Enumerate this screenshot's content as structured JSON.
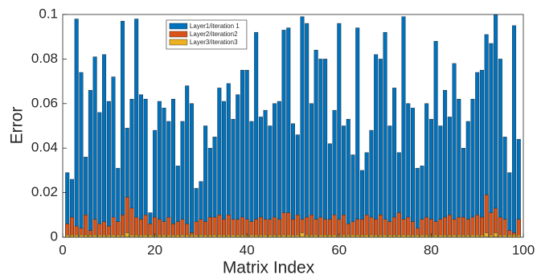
{
  "chart_data": {
    "type": "bar",
    "barmode": "overlay",
    "xlabel": "Matrix Index",
    "ylabel": "Error",
    "x": [
      1,
      2,
      3,
      4,
      5,
      6,
      7,
      8,
      9,
      10,
      11,
      12,
      13,
      14,
      15,
      16,
      17,
      18,
      19,
      20,
      21,
      22,
      23,
      24,
      25,
      26,
      27,
      28,
      29,
      30,
      31,
      32,
      33,
      34,
      35,
      36,
      37,
      38,
      39,
      40,
      41,
      42,
      43,
      44,
      45,
      46,
      47,
      48,
      49,
      50,
      51,
      52,
      53,
      54,
      55,
      56,
      57,
      58,
      59,
      60,
      61,
      62,
      63,
      64,
      65,
      66,
      67,
      68,
      69,
      70,
      71,
      72,
      73,
      74,
      75,
      76,
      77,
      78,
      79,
      80,
      81,
      82,
      83,
      84,
      85,
      86,
      87,
      88,
      89,
      90,
      91,
      92,
      93,
      94,
      95,
      96,
      97,
      98,
      99
    ],
    "series": [
      {
        "name": "Layer1/iteration 1",
        "color": "#0072bd",
        "values": [
          0.029,
          0.026,
          0.098,
          0.074,
          0.036,
          0.066,
          0.081,
          0.056,
          0.082,
          0.061,
          0.072,
          0.031,
          0.097,
          0.049,
          0.062,
          0.098,
          0.064,
          0.062,
          0.011,
          0.048,
          0.061,
          0.058,
          0.052,
          0.062,
          0.032,
          0.052,
          0.068,
          0.06,
          0.022,
          0.025,
          0.05,
          0.04,
          0.045,
          0.067,
          0.061,
          0.069,
          0.053,
          0.064,
          0.075,
          0.075,
          0.052,
          0.092,
          0.054,
          0.057,
          0.05,
          0.06,
          0.061,
          0.093,
          0.094,
          0.051,
          0.046,
          0.099,
          0.096,
          0.06,
          0.084,
          0.08,
          0.08,
          0.042,
          0.057,
          0.096,
          0.05,
          0.053,
          0.037,
          0.094,
          0.03,
          0.038,
          0.048,
          0.082,
          0.08,
          0.092,
          0.05,
          0.067,
          0.038,
          0.099,
          0.06,
          0.058,
          0.031,
          0.032,
          0.06,
          0.053,
          0.088,
          0.05,
          0.066,
          0.054,
          0.078,
          0.062,
          0.04,
          0.052,
          0.062,
          0.074,
          0.075,
          0.091,
          0.087,
          0.1,
          0.08,
          0.045,
          0.029,
          0.095,
          0.044
        ]
      },
      {
        "name": "Layer2/iteration2",
        "color": "#d95319",
        "values": [
          0.006,
          0.009,
          0.005,
          0.004,
          0.01,
          0.003,
          0.008,
          0.006,
          0.007,
          0.005,
          0.009,
          0.007,
          0.01,
          0.018,
          0.013,
          0.009,
          0.008,
          0.01,
          0.006,
          0.009,
          0.008,
          0.007,
          0.009,
          0.006,
          0.007,
          0.008,
          0.006,
          0.002,
          0.007,
          0.008,
          0.007,
          0.009,
          0.009,
          0.01,
          0.008,
          0.01,
          0.008,
          0.008,
          0.009,
          0.008,
          0.007,
          0.008,
          0.009,
          0.008,
          0.008,
          0.009,
          0.008,
          0.011,
          0.011,
          0.008,
          0.01,
          0.008,
          0.009,
          0.01,
          0.008,
          0.009,
          0.008,
          0.008,
          0.01,
          0.008,
          0.01,
          0.006,
          0.007,
          0.008,
          0.008,
          0.01,
          0.009,
          0.008,
          0.01,
          0.008,
          0.007,
          0.009,
          0.011,
          0.008,
          0.009,
          0.007,
          0.004,
          0.008,
          0.009,
          0.008,
          0.007,
          0.008,
          0.009,
          0.01,
          0.008,
          0.009,
          0.009,
          0.008,
          0.009,
          0.01,
          0.009,
          0.019,
          0.011,
          0.013,
          0.009,
          0.008,
          0.003,
          0.002,
          0.008
        ]
      },
      {
        "name": "Layer3/iteration3",
        "color": "#edb120",
        "values": [
          0.001,
          0.001,
          0.001,
          0.001,
          0.001,
          0.001,
          0.001,
          0.001,
          0.001,
          0.001,
          0.001,
          0.001,
          0.001,
          0.002,
          0.001,
          0.001,
          0.001,
          0.001,
          0.001,
          0.001,
          0.001,
          0.001,
          0.001,
          0.001,
          0.001,
          0.001,
          0.001,
          0.001,
          0.001,
          0.001,
          0.001,
          0.001,
          0.001,
          0.001,
          0.001,
          0.001,
          0.001,
          0.001,
          0.001,
          0.001,
          0.001,
          0.001,
          0.001,
          0.001,
          0.001,
          0.001,
          0.001,
          0.001,
          0.001,
          0.001,
          0.001,
          0.002,
          0.001,
          0.001,
          0.001,
          0.001,
          0.001,
          0.001,
          0.001,
          0.001,
          0.001,
          0.001,
          0.001,
          0.001,
          0.001,
          0.001,
          0.001,
          0.001,
          0.001,
          0.001,
          0.001,
          0.001,
          0.001,
          0.001,
          0.001,
          0.001,
          0.001,
          0.001,
          0.001,
          0.001,
          0.001,
          0.001,
          0.001,
          0.001,
          0.001,
          0.001,
          0.001,
          0.001,
          0.001,
          0.001,
          0.001,
          0.002,
          0.001,
          0.002,
          0.001,
          0.001,
          0.001,
          0.001,
          0.001
        ]
      }
    ],
    "xlim": [
      0,
      100
    ],
    "xticks": [
      0,
      20,
      40,
      60,
      80,
      100
    ],
    "ylim": [
      0,
      0.1
    ],
    "yticks": [
      0,
      0.02,
      0.04,
      0.06,
      0.08,
      0.1
    ],
    "legend": "top-center"
  }
}
